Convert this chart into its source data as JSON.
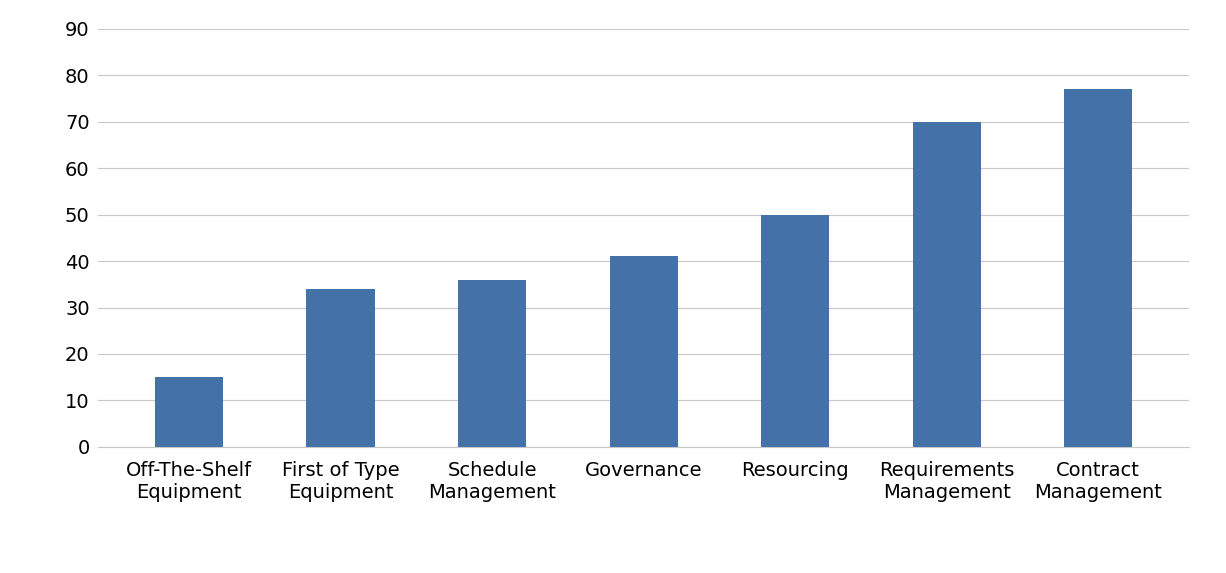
{
  "categories": [
    "Off-The-Shelf\nEquipment",
    "First of Type\nEquipment",
    "Schedule\nManagement",
    "Governance",
    "Resourcing",
    "Requirements\nManagement",
    "Contract\nManagement"
  ],
  "values": [
    15,
    34,
    36,
    41,
    50,
    70,
    77
  ],
  "bar_color": "#4472a8",
  "ylim": [
    0,
    90
  ],
  "yticks": [
    0,
    10,
    20,
    30,
    40,
    50,
    60,
    70,
    80,
    90
  ],
  "background_color": "#ffffff",
  "grid_color": "#c8c8c8",
  "tick_label_fontsize": 14,
  "bar_width": 0.45
}
